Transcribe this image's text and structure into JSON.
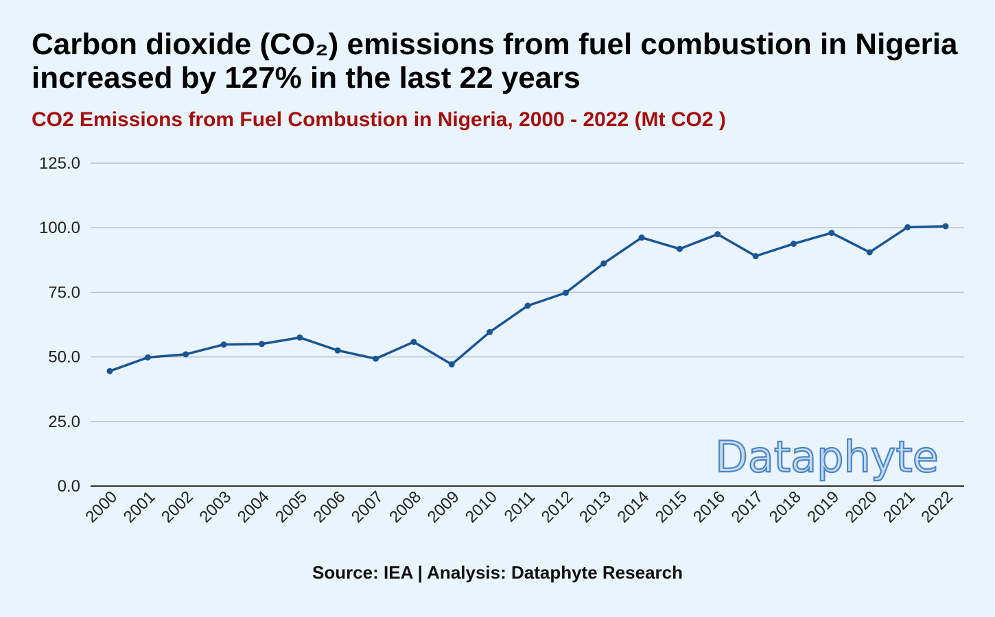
{
  "header": {
    "title": "Carbon dioxide (CO₂) emissions from fuel combustion in Nigeria increased by 127% in the last 22 years",
    "subtitle": "CO2 Emissions from Fuel Combustion in Nigeria, 2000 - 2022 (Mt CO2 )"
  },
  "footer": {
    "source": "Source: IEA | Analysis: Dataphyte Research"
  },
  "watermark": {
    "text": "Dataphyte"
  },
  "colors": {
    "background": "#eaf4fd",
    "line": "#1a5493",
    "grid": "#b8c2cc",
    "subtitle": "#a50e0e"
  },
  "chart_data": {
    "type": "line",
    "title": "CO2 Emissions from Fuel Combustion in Nigeria, 2000 - 2022 (Mt CO2 )",
    "xlabel": "",
    "ylabel": "",
    "ylim": [
      0,
      125
    ],
    "yticks": [
      "0.0",
      "25.0",
      "50.0",
      "75.0",
      "100.0",
      "125.0"
    ],
    "grid": true,
    "legend": "none",
    "categories": [
      "2000",
      "2001",
      "2002",
      "2003",
      "2004",
      "2005",
      "2006",
      "2007",
      "2008",
      "2009",
      "2010",
      "2011",
      "2012",
      "2013",
      "2014",
      "2015",
      "2016",
      "2017",
      "2018",
      "2019",
      "2020",
      "2021",
      "2022"
    ],
    "series": [
      {
        "values": [
          44.5,
          49.8,
          51.0,
          54.8,
          55.0,
          57.5,
          52.5,
          49.3,
          55.8,
          47.1,
          59.6,
          69.8,
          74.8,
          86.2,
          96.2,
          91.8,
          97.5,
          89.0,
          93.8,
          98.0,
          90.5,
          100.2,
          100.6
        ]
      }
    ]
  }
}
